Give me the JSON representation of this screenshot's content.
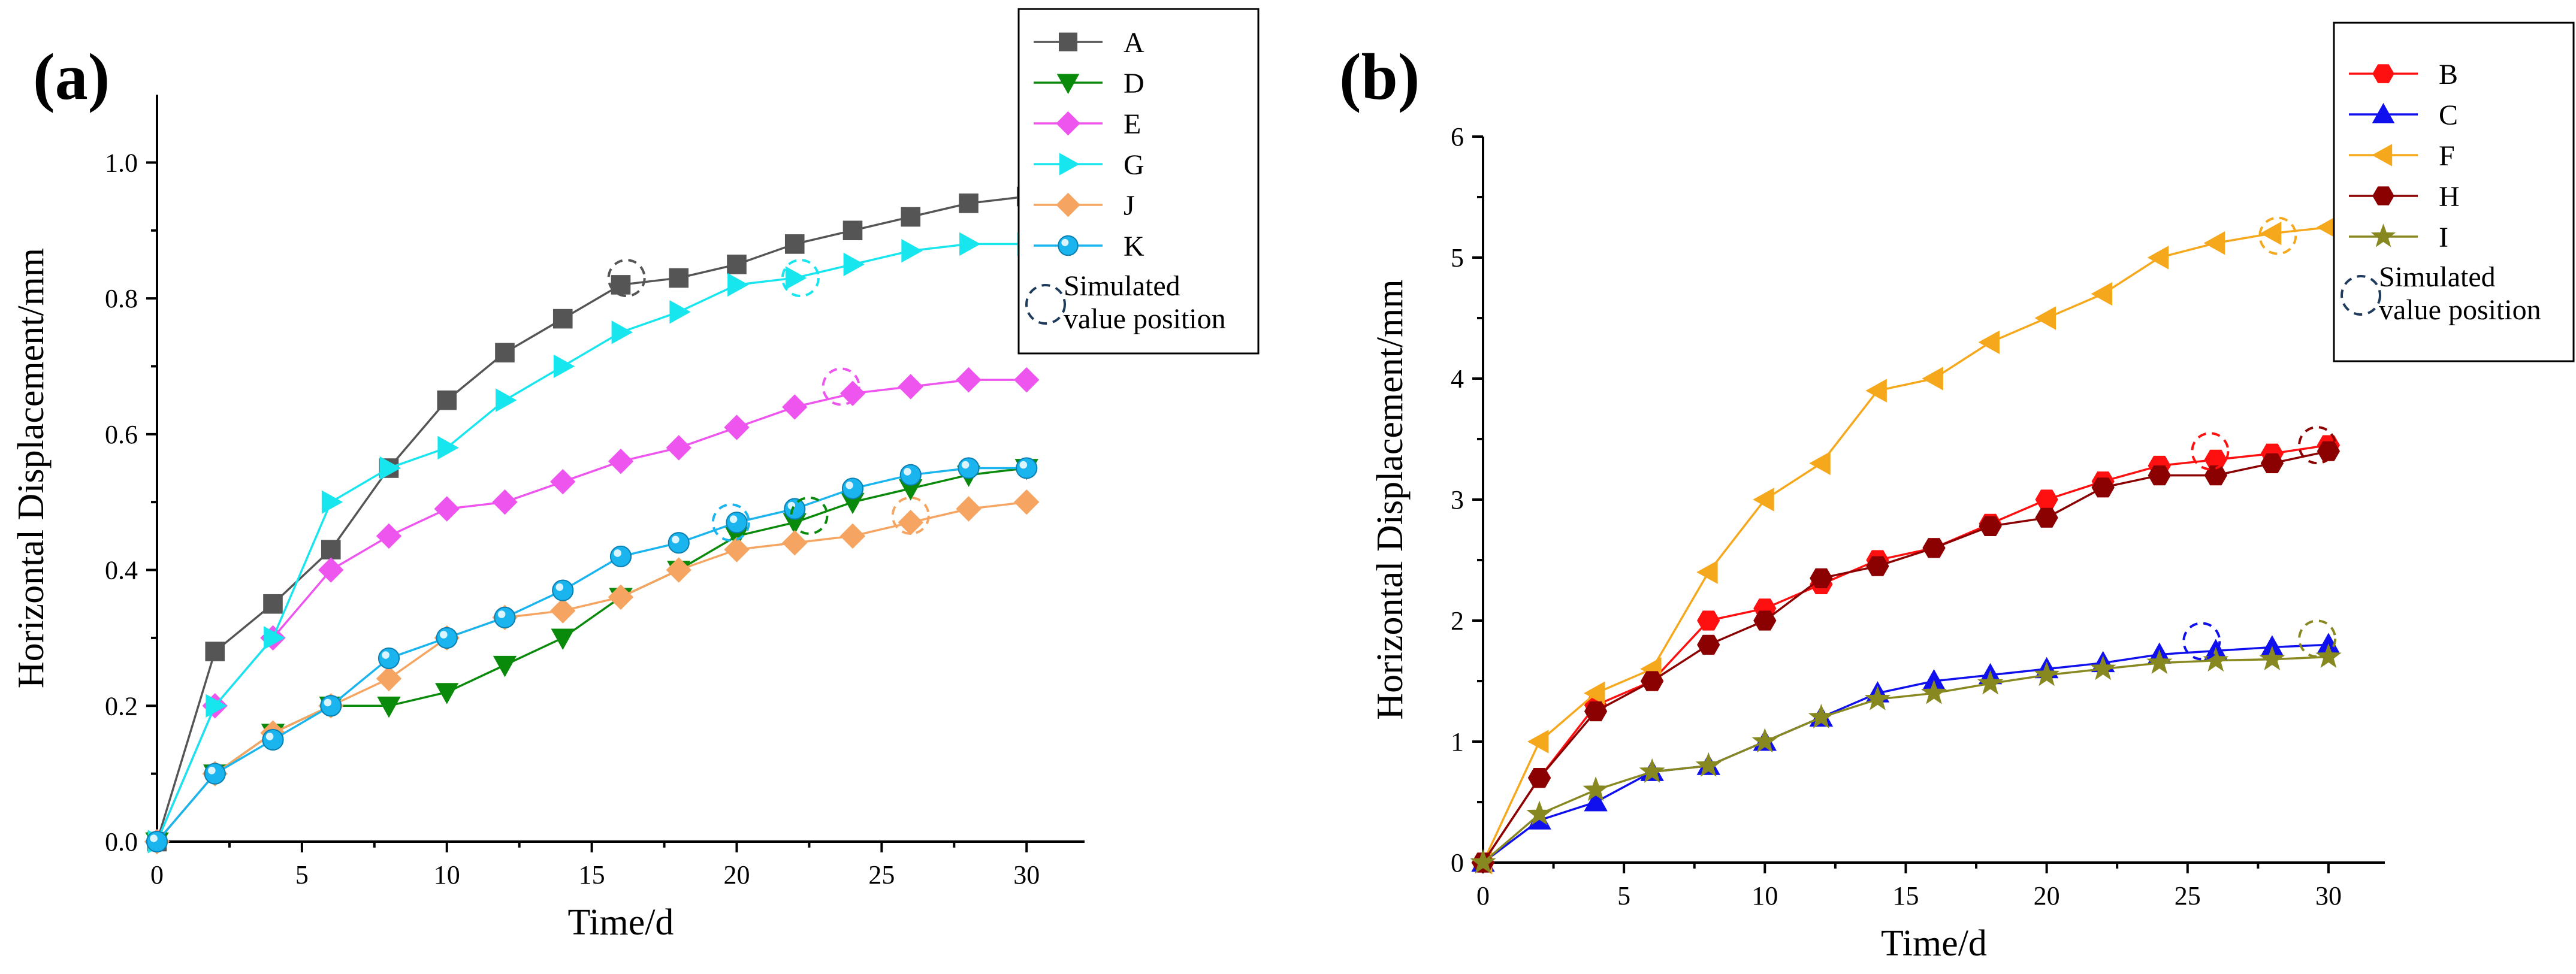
{
  "chart_data": [
    {
      "panel": "(a)",
      "type": "line",
      "xlabel": "Time/d",
      "ylabel": "Horizontal Displacement/mm",
      "xlim": [
        0,
        32
      ],
      "ylim": [
        0,
        1.1
      ],
      "xticks": [
        0,
        5,
        10,
        15,
        20,
        25,
        30
      ],
      "yticks": [
        0.0,
        0.2,
        0.4,
        0.6,
        0.8,
        1.0
      ],
      "ytick_labels": [
        "0.0",
        "0.2",
        "0.4",
        "0.6",
        "0.8",
        "1.0"
      ],
      "x": [
        0,
        2,
        4,
        6,
        8,
        10,
        12,
        14,
        16,
        18,
        20,
        22,
        24,
        26,
        28,
        30
      ],
      "series": [
        {
          "name": "A",
          "color": "#555555",
          "marker": "square",
          "values": [
            0,
            0.28,
            0.35,
            0.43,
            0.55,
            0.65,
            0.72,
            0.77,
            0.82,
            0.83,
            0.85,
            0.88,
            0.9,
            0.92,
            0.94,
            0.95
          ]
        },
        {
          "name": "D",
          "color": "#0a8a0a",
          "marker": "triangle-down",
          "values": [
            0,
            0.1,
            0.16,
            0.2,
            0.2,
            0.22,
            0.26,
            0.3,
            0.36,
            0.4,
            0.45,
            0.47,
            0.5,
            0.52,
            0.54,
            0.55
          ]
        },
        {
          "name": "E",
          "color": "#ee55ee",
          "marker": "diamond",
          "values": [
            0,
            0.2,
            0.3,
            0.4,
            0.45,
            0.49,
            0.5,
            0.53,
            0.56,
            0.58,
            0.61,
            0.64,
            0.66,
            0.67,
            0.68,
            0.68
          ]
        },
        {
          "name": "G",
          "color": "#18e6ee",
          "marker": "triangle-right",
          "values": [
            0,
            0.2,
            0.3,
            0.5,
            0.55,
            0.58,
            0.65,
            0.7,
            0.75,
            0.78,
            0.82,
            0.83,
            0.85,
            0.87,
            0.88,
            0.88
          ]
        },
        {
          "name": "J",
          "color": "#f5a561",
          "marker": "diamond",
          "values": [
            0,
            0.1,
            0.16,
            0.2,
            0.24,
            0.3,
            0.33,
            0.34,
            0.36,
            0.4,
            0.43,
            0.44,
            0.45,
            0.47,
            0.49,
            0.5
          ]
        },
        {
          "name": "K",
          "color": "#1ab4ee",
          "marker": "sphere",
          "values": [
            0,
            0.1,
            0.15,
            0.2,
            0.27,
            0.3,
            0.33,
            0.37,
            0.42,
            0.44,
            0.47,
            0.49,
            0.52,
            0.54,
            0.55,
            0.55
          ]
        }
      ],
      "simulated": [
        {
          "series": "A",
          "x": 16.2,
          "y": 0.83
        },
        {
          "series": "G",
          "x": 22.2,
          "y": 0.83
        },
        {
          "series": "E",
          "x": 23.6,
          "y": 0.67
        },
        {
          "series": "K",
          "x": 19.8,
          "y": 0.47
        },
        {
          "series": "D",
          "x": 22.5,
          "y": 0.48
        },
        {
          "series": "J",
          "x": 26.0,
          "y": 0.48
        }
      ],
      "legend_position": "top-right",
      "legend_note": [
        "Simulated",
        "value position"
      ]
    },
    {
      "panel": "(b)",
      "type": "line",
      "xlabel": "Time/d",
      "ylabel": "Horizontal Displacement/mm",
      "xlim": [
        0,
        32
      ],
      "ylim": [
        0,
        6
      ],
      "xticks": [
        0,
        5,
        10,
        15,
        20,
        25,
        30
      ],
      "yticks": [
        0,
        1,
        2,
        3,
        4,
        5,
        6
      ],
      "ytick_labels": [
        "0",
        "1",
        "2",
        "3",
        "4",
        "5",
        "6"
      ],
      "x": [
        0,
        2,
        4,
        6,
        8,
        10,
        12,
        14,
        16,
        18,
        20,
        22,
        24,
        26,
        28,
        30
      ],
      "series": [
        {
          "name": "B",
          "color": "#ff1010",
          "marker": "hexagon",
          "values": [
            0,
            0.7,
            1.3,
            1.5,
            2.0,
            2.1,
            2.3,
            2.5,
            2.6,
            2.8,
            3.0,
            3.15,
            3.28,
            3.33,
            3.38,
            3.45
          ]
        },
        {
          "name": "C",
          "color": "#1010ee",
          "marker": "triangle-up",
          "values": [
            0,
            0.35,
            0.5,
            0.75,
            0.8,
            1.0,
            1.2,
            1.4,
            1.5,
            1.55,
            1.6,
            1.65,
            1.72,
            1.75,
            1.78,
            1.8
          ]
        },
        {
          "name": "F",
          "color": "#f5a81c",
          "marker": "triangle-left",
          "values": [
            0,
            1.0,
            1.4,
            1.6,
            2.4,
            3.0,
            3.3,
            3.9,
            4.0,
            4.3,
            4.5,
            4.7,
            5.0,
            5.12,
            5.2,
            5.25
          ]
        },
        {
          "name": "H",
          "color": "#8b0000",
          "marker": "hexagon",
          "values": [
            0,
            0.7,
            1.25,
            1.5,
            1.8,
            2.0,
            2.35,
            2.45,
            2.6,
            2.78,
            2.85,
            3.1,
            3.2,
            3.2,
            3.3,
            3.4
          ]
        },
        {
          "name": "I",
          "color": "#888820",
          "marker": "star",
          "values": [
            0,
            0.4,
            0.6,
            0.75,
            0.8,
            1.0,
            1.2,
            1.35,
            1.4,
            1.48,
            1.55,
            1.6,
            1.65,
            1.67,
            1.68,
            1.7
          ]
        }
      ],
      "simulated": [
        {
          "series": "B",
          "x": 25.8,
          "y": 3.4
        },
        {
          "series": "H",
          "x": 29.6,
          "y": 3.45
        },
        {
          "series": "C",
          "x": 25.5,
          "y": 1.83
        },
        {
          "series": "I",
          "x": 29.6,
          "y": 1.85
        },
        {
          "series": "F",
          "x": 28.2,
          "y": 5.18
        }
      ],
      "legend_position": "top-right",
      "legend_note": [
        "Simulated",
        "value position"
      ]
    }
  ]
}
